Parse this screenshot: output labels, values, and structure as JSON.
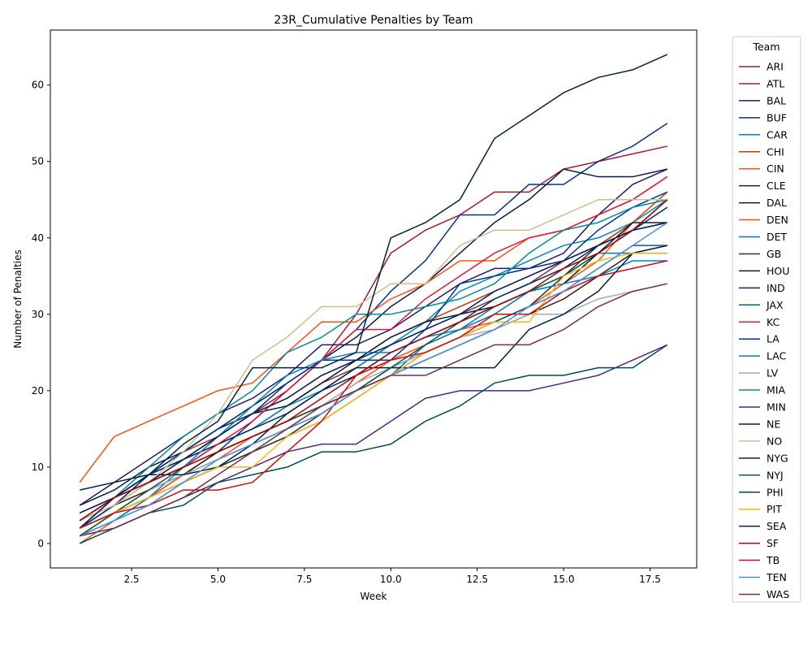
{
  "chart_data": {
    "type": "line",
    "title": "23R_Cumulative Penalties by Team",
    "xlabel": "Week",
    "ylabel": "Number of Penalties",
    "xlim": [
      0.15,
      18.85
    ],
    "ylim": [
      -3.2,
      67.2
    ],
    "x_ticks": [
      2.5,
      5.0,
      7.5,
      10.0,
      12.5,
      15.0,
      17.5
    ],
    "x_tick_labels": [
      "2.5",
      "5.0",
      "7.5",
      "10.0",
      "12.5",
      "15.0",
      "17.5"
    ],
    "y_ticks": [
      0,
      10,
      20,
      30,
      40,
      50,
      60
    ],
    "y_tick_labels": [
      "0",
      "10",
      "20",
      "30",
      "40",
      "50",
      "60"
    ],
    "grid": false,
    "legend_title": "Team",
    "legend_position": "outside-right",
    "x": [
      1,
      2,
      3,
      4,
      5,
      6,
      7,
      8,
      9,
      10,
      11,
      12,
      13,
      14,
      15,
      16,
      17,
      18
    ],
    "series": [
      {
        "name": "ARI",
        "color": "#97233F",
        "values": [
          4,
          6,
          9,
          11,
          13,
          15,
          18,
          21,
          23,
          26,
          28,
          30,
          32,
          34,
          37,
          39,
          42,
          46
        ]
      },
      {
        "name": "ATL",
        "color": "#A71930",
        "values": [
          3,
          5,
          8,
          11,
          14,
          17,
          20,
          24,
          30,
          38,
          41,
          43,
          46,
          46,
          49,
          50,
          51,
          52
        ]
      },
      {
        "name": "BAL",
        "color": "#241773",
        "values": [
          5,
          8,
          11,
          14,
          17,
          19,
          22,
          26,
          26,
          28,
          31,
          34,
          36,
          36,
          38,
          43,
          47,
          49
        ]
      },
      {
        "name": "BUF",
        "color": "#00338D",
        "values": [
          2,
          4,
          6,
          9,
          12,
          16,
          20,
          24,
          28,
          33,
          37,
          43,
          43,
          47,
          47,
          50,
          52,
          55
        ]
      },
      {
        "name": "CAR",
        "color": "#0085CA",
        "values": [
          3,
          6,
          8,
          10,
          13,
          15,
          18,
          20,
          23,
          26,
          29,
          33,
          35,
          37,
          39,
          40,
          42,
          45
        ]
      },
      {
        "name": "CHI",
        "color": "#C83803",
        "values": [
          2,
          6,
          9,
          12,
          14,
          17,
          19,
          22,
          24,
          27,
          29,
          31,
          33,
          35,
          37,
          39,
          42,
          46
        ]
      },
      {
        "name": "CIN",
        "color": "#FB4F14",
        "values": [
          0,
          3,
          6,
          9,
          11,
          14,
          16,
          18,
          21,
          24,
          26,
          28,
          29,
          31,
          34,
          37,
          42,
          46
        ]
      },
      {
        "name": "CLE",
        "color": "#311D00",
        "values": [
          2,
          5,
          7,
          9,
          12,
          14,
          16,
          18,
          20,
          22,
          24,
          26,
          28,
          30,
          32,
          35,
          38,
          39
        ]
      },
      {
        "name": "DAL",
        "color": "#041E42",
        "values": [
          5,
          7,
          10,
          12,
          15,
          18,
          21,
          24,
          27,
          31,
          34,
          38,
          42,
          45,
          49,
          48,
          48,
          49
        ]
      },
      {
        "name": "DEN",
        "color": "#FB4F14",
        "values": [
          8,
          14,
          16,
          18,
          20,
          21,
          25,
          29,
          29,
          32,
          34,
          37,
          37,
          40,
          41,
          43,
          45,
          48
        ]
      },
      {
        "name": "DET",
        "color": "#0076B6",
        "values": [
          1,
          3,
          5,
          8,
          10,
          12,
          14,
          16,
          19,
          22,
          26,
          28,
          30,
          33,
          35,
          38,
          38,
          38
        ]
      },
      {
        "name": "GB",
        "color": "#203731",
        "values": [
          1,
          4,
          6,
          8,
          10,
          12,
          14,
          17,
          20,
          23,
          25,
          27,
          29,
          31,
          35,
          39,
          41,
          42
        ]
      },
      {
        "name": "HOU",
        "color": "#03202F",
        "values": [
          2,
          5,
          9,
          12,
          15,
          17,
          18,
          21,
          24,
          27,
          29,
          30,
          31,
          33,
          34,
          38,
          42,
          42
        ]
      },
      {
        "name": "IND",
        "color": "#002C5F",
        "values": [
          3,
          6,
          9,
          11,
          13,
          15,
          17,
          20,
          22,
          25,
          27,
          29,
          32,
          34,
          36,
          39,
          41,
          44
        ]
      },
      {
        "name": "JAX",
        "color": "#006778",
        "values": [
          2,
          4,
          7,
          9,
          11,
          13,
          15,
          17,
          20,
          22,
          25,
          27,
          29,
          31,
          33,
          36,
          39,
          39
        ]
      },
      {
        "name": "KC",
        "color": "#E31837",
        "values": [
          3,
          6,
          8,
          10,
          13,
          16,
          20,
          24,
          28,
          28,
          32,
          35,
          38,
          40,
          41,
          43,
          45,
          48
        ]
      },
      {
        "name": "LA",
        "color": "#003594",
        "values": [
          2,
          5,
          9,
          12,
          15,
          17,
          21,
          24,
          24,
          24,
          28,
          34,
          35,
          36,
          37,
          41,
          44,
          46
        ]
      },
      {
        "name": "LAC",
        "color": "#0080C6",
        "values": [
          1,
          3,
          6,
          10,
          14,
          18,
          22,
          24,
          25,
          25,
          27,
          28,
          31,
          33,
          34,
          35,
          37,
          37
        ]
      },
      {
        "name": "LV",
        "color": "#A5ACAF",
        "values": [
          2,
          4,
          7,
          9,
          11,
          13,
          15,
          18,
          21,
          23,
          25,
          27,
          28,
          30,
          30,
          32,
          33,
          34
        ]
      },
      {
        "name": "MIA",
        "color": "#008E97",
        "values": [
          2,
          6,
          10,
          14,
          17,
          20,
          25,
          27,
          30,
          30,
          31,
          32,
          34,
          38,
          41,
          42,
          44,
          45
        ]
      },
      {
        "name": "MIN",
        "color": "#4F2683",
        "values": [
          1,
          2,
          4,
          6,
          8,
          10,
          12,
          13,
          13,
          16,
          19,
          20,
          20,
          20,
          21,
          22,
          24,
          26
        ]
      },
      {
        "name": "NE",
        "color": "#002244",
        "values": [
          7,
          8,
          9,
          9,
          10,
          13,
          17,
          20,
          23,
          23,
          23,
          23,
          23,
          28,
          30,
          33,
          38,
          39
        ]
      },
      {
        "name": "NO",
        "color": "#D3BC8D",
        "values": [
          3,
          5,
          8,
          12,
          17,
          24,
          27,
          31,
          31,
          34,
          34,
          39,
          41,
          41,
          43,
          45,
          45,
          45
        ]
      },
      {
        "name": "NYG",
        "color": "#0B2265",
        "values": [
          4,
          6,
          8,
          11,
          14,
          17,
          19,
          22,
          24,
          26,
          28,
          30,
          33,
          35,
          37,
          39,
          41,
          42
        ]
      },
      {
        "name": "NYJ",
        "color": "#125740",
        "values": [
          1,
          4,
          7,
          10,
          12,
          14,
          16,
          18,
          20,
          23,
          26,
          29,
          31,
          33,
          35,
          38,
          41,
          45
        ]
      },
      {
        "name": "PHI",
        "color": "#004C54",
        "values": [
          0,
          2,
          4,
          5,
          8,
          9,
          10,
          12,
          12,
          13,
          16,
          18,
          21,
          22,
          22,
          23,
          23,
          26
        ]
      },
      {
        "name": "PIT",
        "color": "#FFB612",
        "values": [
          2,
          4,
          6,
          8,
          10,
          10,
          14,
          16,
          19,
          22,
          25,
          27,
          29,
          29,
          35,
          37,
          38,
          38
        ]
      },
      {
        "name": "SEA",
        "color": "#002244",
        "values": [
          2,
          6,
          9,
          13,
          16,
          23,
          23,
          23,
          25,
          40,
          42,
          45,
          53,
          56,
          59,
          61,
          62,
          64
        ]
      },
      {
        "name": "SF",
        "color": "#AA0000",
        "values": [
          3,
          6,
          8,
          10,
          12,
          14,
          16,
          19,
          22,
          25,
          27,
          29,
          31,
          33,
          36,
          38,
          41,
          45
        ]
      },
      {
        "name": "TB",
        "color": "#D50A0A",
        "values": [
          2,
          4,
          5,
          7,
          7,
          8,
          12,
          16,
          22,
          24,
          25,
          27,
          30,
          30,
          33,
          35,
          36,
          37
        ]
      },
      {
        "name": "TEN",
        "color": "#4B92DB",
        "values": [
          1,
          3,
          5,
          8,
          11,
          13,
          15,
          17,
          20,
          22,
          24,
          26,
          28,
          31,
          33,
          36,
          39,
          42
        ]
      },
      {
        "name": "WAS",
        "color": "#773141",
        "values": [
          1,
          2,
          4,
          6,
          9,
          12,
          15,
          18,
          20,
          22,
          22,
          24,
          26,
          26,
          28,
          31,
          33,
          34
        ]
      }
    ]
  }
}
